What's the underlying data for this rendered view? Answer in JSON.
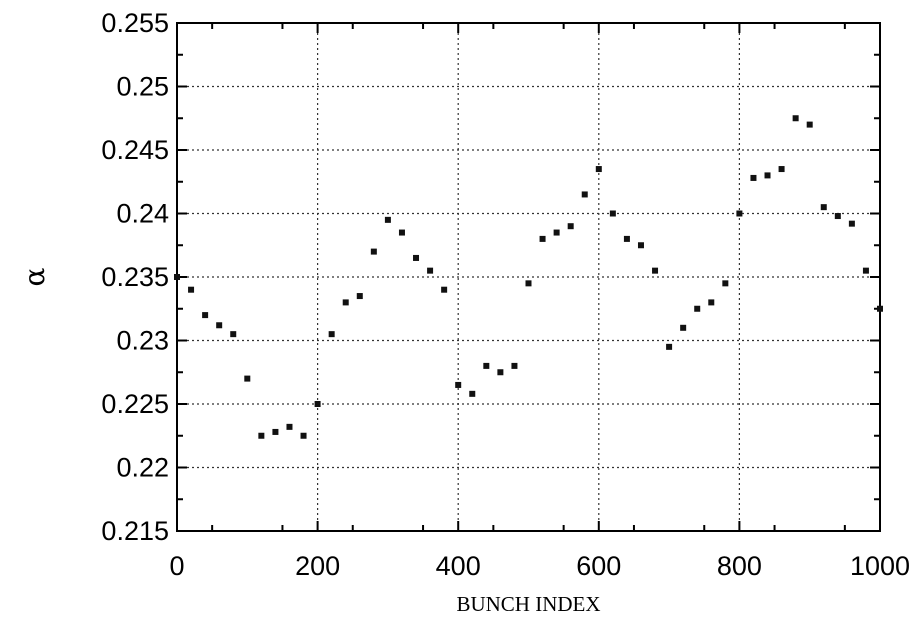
{
  "chart_data": {
    "type": "scatter",
    "title": "",
    "xlabel": "BUNCH INDEX",
    "ylabel": "α",
    "xlim": [
      0,
      1000
    ],
    "ylim": [
      0.215,
      0.255
    ],
    "x_ticks": [
      0,
      200,
      400,
      600,
      800,
      1000
    ],
    "x_tick_labels": [
      "0",
      "200",
      "400",
      "600",
      "800",
      "1000"
    ],
    "y_ticks": [
      0.215,
      0.22,
      0.225,
      0.23,
      0.235,
      0.24,
      0.245,
      0.25,
      0.255
    ],
    "y_tick_labels": [
      "0.215",
      "0.22",
      "0.225",
      "0.23",
      "0.235",
      "0.24",
      "0.245",
      "0.25",
      "0.255"
    ],
    "grid": true,
    "legend": "none",
    "marker_color": "#111111",
    "series": [
      {
        "x": [
          0,
          20,
          40,
          60,
          80,
          100,
          120,
          140,
          160,
          180,
          200,
          220,
          240,
          260,
          280,
          300,
          320,
          340,
          360,
          380,
          400,
          420,
          440,
          460,
          480,
          500,
          520,
          540,
          560,
          580,
          600,
          620,
          640,
          660,
          680,
          700,
          720,
          740,
          760,
          780,
          800,
          820,
          840,
          860,
          880,
          900,
          920,
          940,
          960,
          980,
          1000
        ],
        "y": [
          0.235,
          0.234,
          0.232,
          0.2312,
          0.2305,
          0.227,
          0.2225,
          0.2228,
          0.2232,
          0.2225,
          0.225,
          0.2305,
          0.233,
          0.2335,
          0.237,
          0.2395,
          0.2385,
          0.2365,
          0.2355,
          0.234,
          0.2265,
          0.2258,
          0.228,
          0.2275,
          0.228,
          0.2345,
          0.238,
          0.2385,
          0.239,
          0.2415,
          0.2435,
          0.24,
          0.238,
          0.2375,
          0.2355,
          0.2295,
          0.231,
          0.2325,
          0.233,
          0.2345,
          0.24,
          0.2428,
          0.243,
          0.2435,
          0.2475,
          0.247,
          0.2405,
          0.2398,
          0.2392,
          0.2355,
          0.2325
        ]
      }
    ]
  }
}
